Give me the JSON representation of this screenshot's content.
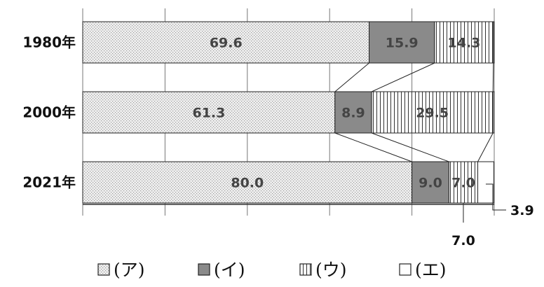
{
  "chart_data": {
    "type": "bar",
    "orientation": "horizontal",
    "stacked": true,
    "percent": true,
    "categories": [
      "1980年",
      "2000年",
      "2021年"
    ],
    "series": [
      {
        "name": "(ア)",
        "values": [
          69.6,
          61.3,
          80.0
        ],
        "labels": [
          "69.6",
          "61.3",
          "80.0"
        ],
        "pattern": "dots",
        "color": "#e6e6e6"
      },
      {
        "name": "(イ)",
        "values": [
          15.9,
          8.9,
          9.0
        ],
        "labels": [
          "15.9",
          "8.9",
          "9.0"
        ],
        "pattern": "solid",
        "color": "#8a8a8a"
      },
      {
        "name": "(ウ)",
        "values": [
          14.3,
          29.5,
          7.0
        ],
        "labels": [
          "14.3",
          "29.5",
          "7.0"
        ],
        "pattern": "vertical-lines",
        "color": "#ffffff"
      },
      {
        "name": "(エ)",
        "values": [
          0.2,
          0.3,
          3.9
        ],
        "labels": [
          "",
          "",
          "3.9"
        ],
        "pattern": "empty",
        "color": "#ffffff"
      }
    ],
    "xlim": [
      0,
      100
    ],
    "grid": true,
    "connector_lines": true,
    "legend_position": "bottom"
  }
}
